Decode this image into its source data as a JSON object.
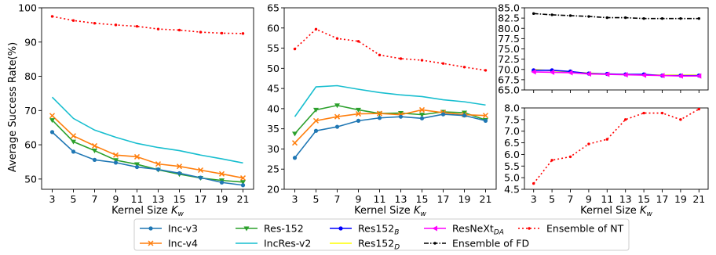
{
  "figure": {
    "ylabel": "Average Success Rate(%)"
  },
  "legend": {
    "columns": 5,
    "entries": [
      {
        "label": "Inc-v3",
        "color": "#1f77b4",
        "marker": "circle",
        "dash": "solid"
      },
      {
        "label": "Inc-v4",
        "color": "#ff7f0e",
        "marker": "x",
        "dash": "solid"
      },
      {
        "label": "Res-152",
        "color": "#2ca02c",
        "marker": "tri-down",
        "dash": "solid"
      },
      {
        "label": "IncRes-v2",
        "color": "#17becf",
        "marker": "none",
        "dash": "solid"
      },
      {
        "label": "Res152",
        "sub": "B",
        "color": "#0000ff",
        "marker": "circle",
        "dash": "solid"
      },
      {
        "label": "Res152",
        "sub": "D",
        "color": "#ffff00",
        "marker": "none",
        "dash": "solid"
      },
      {
        "label": "ResNeXt",
        "sub": "DA",
        "color": "#ff00ff",
        "marker": "tri-left",
        "dash": "solid"
      },
      {
        "label": "Ensemble of FD",
        "color": "#000000",
        "marker": "dot",
        "dash": "dashdot"
      },
      {
        "label": "Ensemble of NT",
        "color": "#ff0000",
        "marker": "dot",
        "dash": "dotted"
      }
    ]
  },
  "chart_data": [
    {
      "type": "line",
      "xlabel": "Kernel Size",
      "xlabel_var": "K",
      "xlabel_sub": "w",
      "ylabel": "Average Success Rate(%)",
      "x": [
        3,
        5,
        7,
        9,
        11,
        13,
        15,
        17,
        19,
        21
      ],
      "ylim": [
        47,
        100
      ],
      "yticks": [
        50,
        60,
        70,
        80,
        90,
        100
      ],
      "series": [
        {
          "name": "Ensemble of NT",
          "values": [
            97.5,
            96.3,
            95.5,
            95.0,
            94.6,
            93.8,
            93.5,
            92.9,
            92.6,
            92.5
          ]
        },
        {
          "name": "IncRes-v2",
          "values": [
            73.9,
            67.7,
            64.3,
            62.2,
            60.4,
            59.2,
            58.3,
            57.0,
            55.9,
            54.7
          ]
        },
        {
          "name": "Inc-v4",
          "values": [
            68.5,
            62.6,
            59.7,
            57.0,
            56.5,
            54.4,
            53.7,
            52.6,
            51.5,
            50.3
          ]
        },
        {
          "name": "Res-152",
          "values": [
            67.2,
            60.9,
            58.3,
            55.5,
            54.3,
            52.7,
            51.4,
            50.3,
            49.6,
            49.1
          ]
        },
        {
          "name": "Inc-v3",
          "values": [
            63.7,
            58.0,
            55.6,
            54.8,
            53.5,
            52.8,
            51.7,
            50.4,
            49.0,
            48.2
          ]
        }
      ]
    },
    {
      "type": "line",
      "xlabel": "Kernel Size",
      "xlabel_var": "K",
      "xlabel_sub": "w",
      "x": [
        3,
        5,
        7,
        9,
        11,
        13,
        15,
        17,
        19,
        21
      ],
      "ylim": [
        20,
        65
      ],
      "yticks": [
        20,
        25,
        30,
        35,
        40,
        45,
        50,
        55,
        60,
        65
      ],
      "series": [
        {
          "name": "Ensemble of NT",
          "values": [
            54.8,
            59.7,
            57.4,
            56.7,
            53.3,
            52.4,
            52.0,
            51.2,
            50.3,
            49.5
          ]
        },
        {
          "name": "IncRes-v2",
          "values": [
            38.0,
            45.4,
            45.7,
            44.8,
            44.0,
            43.4,
            43.0,
            42.2,
            41.7,
            40.9
          ]
        },
        {
          "name": "Res-152",
          "values": [
            33.8,
            39.7,
            40.8,
            39.7,
            38.8,
            38.9,
            38.5,
            39.2,
            39.0,
            37.2
          ]
        },
        {
          "name": "Inc-v4",
          "values": [
            31.5,
            37.0,
            38.0,
            38.7,
            38.8,
            38.5,
            39.7,
            39.0,
            38.5,
            38.3
          ]
        },
        {
          "name": "Inc-v3",
          "values": [
            27.8,
            34.5,
            35.5,
            37.0,
            37.7,
            38.0,
            37.6,
            38.6,
            38.3,
            37.0
          ]
        }
      ]
    },
    {
      "type": "line",
      "xlabel": "Kernel Size",
      "xlabel_var": "K",
      "xlabel_sub": "w",
      "broken_axis": true,
      "x": [
        3,
        5,
        7,
        9,
        11,
        13,
        15,
        17,
        19,
        21
      ],
      "upper": {
        "ylim": [
          65,
          85
        ],
        "yticks": [
          65.0,
          67.5,
          70.0,
          72.5,
          75.0,
          77.5,
          80.0,
          82.5,
          85.0
        ],
        "series": [
          {
            "name": "Ensemble of FD",
            "values": [
              83.6,
              83.3,
              83.1,
              82.9,
              82.6,
              82.6,
              82.4,
              82.4,
              82.4,
              82.4
            ]
          },
          {
            "name": "Res152_D",
            "values": [
              70.0,
              69.7,
              69.4,
              69.1,
              68.9,
              68.8,
              68.7,
              68.6,
              68.6,
              68.6
            ]
          },
          {
            "name": "Res152_B",
            "values": [
              69.8,
              69.8,
              69.5,
              69.0,
              68.9,
              68.8,
              68.8,
              68.5,
              68.5,
              68.5
            ]
          },
          {
            "name": "ResNeXt_DA",
            "values": [
              69.4,
              69.3,
              69.2,
              68.9,
              68.8,
              68.7,
              68.6,
              68.5,
              68.4,
              68.4
            ]
          }
        ]
      },
      "lower": {
        "ylim": [
          4.5,
          8.0
        ],
        "yticks": [
          4.5,
          5.0,
          5.5,
          6.0,
          6.5,
          7.0,
          7.5,
          8.0
        ],
        "series": [
          {
            "name": "Ensemble of NT",
            "values": [
              4.75,
              5.75,
              5.9,
              6.45,
              6.65,
              7.5,
              7.78,
              7.78,
              7.5,
              7.95
            ]
          }
        ]
      }
    }
  ]
}
